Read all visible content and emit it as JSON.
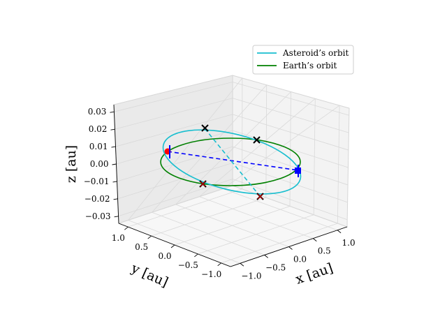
{
  "chart_data": {
    "type": "3d-line",
    "grid": true,
    "axes": {
      "x": {
        "label": "x [au]",
        "ticks": [
          "−1.0",
          "−0.5",
          "0.0",
          "0.5",
          "1.0"
        ],
        "range": [
          -1.2,
          1.2
        ]
      },
      "y": {
        "label": "y [au]",
        "ticks": [
          "−1.0",
          "−0.5",
          "0.0",
          "0.5",
          "1.0"
        ],
        "range": [
          -1.2,
          1.2
        ]
      },
      "z": {
        "label": "z [au]",
        "ticks": [
          "−0.03",
          "−0.02",
          "−0.01",
          "0.00",
          "0.01",
          "0.02",
          "0.03"
        ],
        "range": [
          -0.03,
          0.03
        ]
      }
    },
    "legend": {
      "position": "top-right",
      "entries": [
        {
          "label": "Asteroid’s orbit",
          "color": "#17becf"
        },
        {
          "label": "Earth’s orbit",
          "color": "#008000"
        }
      ]
    },
    "series": [
      {
        "name": "Asteroid’s orbit",
        "shape": "tilted ellipse",
        "color": "#17becf",
        "approx_semi_major_au": 1.0,
        "approx_inclination_deg": 1.5
      },
      {
        "name": "Earth’s orbit",
        "shape": "circle",
        "color": "#008000",
        "radius_au": 1.0,
        "z": 0.0
      }
    ],
    "markers": [
      {
        "kind": "x",
        "color": "#000000"
      },
      {
        "kind": "x",
        "color": "#000000"
      },
      {
        "kind": "x",
        "color": "#000000"
      },
      {
        "kind": "x",
        "color": "#cc0000"
      },
      {
        "kind": "dot",
        "color": "#ff0000"
      },
      {
        "kind": "square",
        "color": "#0000ff"
      }
    ],
    "lines": [
      {
        "style": "dashed",
        "color": "#0000ff",
        "from": "red dot",
        "to": "blue square"
      },
      {
        "style": "dashed",
        "color": "#17becf",
        "from": "upper black x",
        "to": "lower red x"
      }
    ]
  }
}
